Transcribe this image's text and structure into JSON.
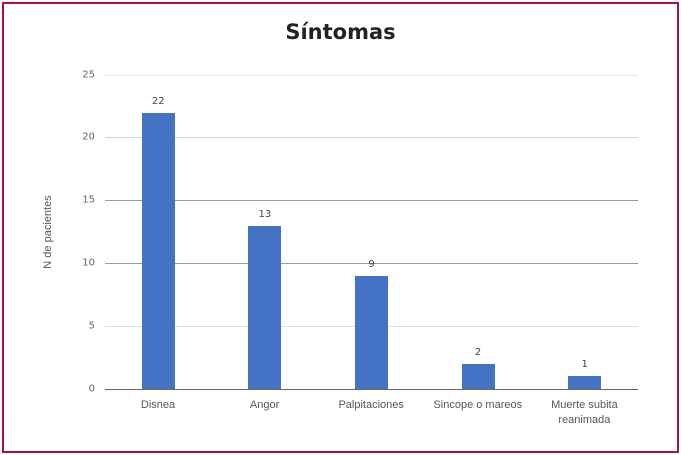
{
  "chart_data": {
    "type": "bar",
    "title": "Síntomas",
    "xlabel": "",
    "ylabel": "N de pacientes",
    "categories": [
      "Disnea",
      "Angor",
      "Palpitaciones",
      "Sincope o mareos",
      "Muerte subita reanimada"
    ],
    "values": [
      22,
      13,
      9,
      2,
      1
    ],
    "ylim": [
      0,
      25
    ],
    "yticks": [
      0,
      5,
      10,
      15,
      20,
      25
    ],
    "grid": true,
    "legend": null,
    "data_labels": true,
    "bar_color": "#4472c4"
  },
  "frame": {
    "border_color": "#a8123e"
  },
  "labels": {
    "title": "Síntomas",
    "ylabel": "N de pacientes",
    "yticks": [
      "0",
      "5",
      "10",
      "15",
      "20",
      "25"
    ],
    "categories": [
      "Disnea",
      "Angor",
      "Palpitaciones",
      "Sincope o mareos",
      "Muerte subita\nreanimada"
    ],
    "values": [
      "22",
      "13",
      "9",
      "2",
      "1"
    ]
  }
}
